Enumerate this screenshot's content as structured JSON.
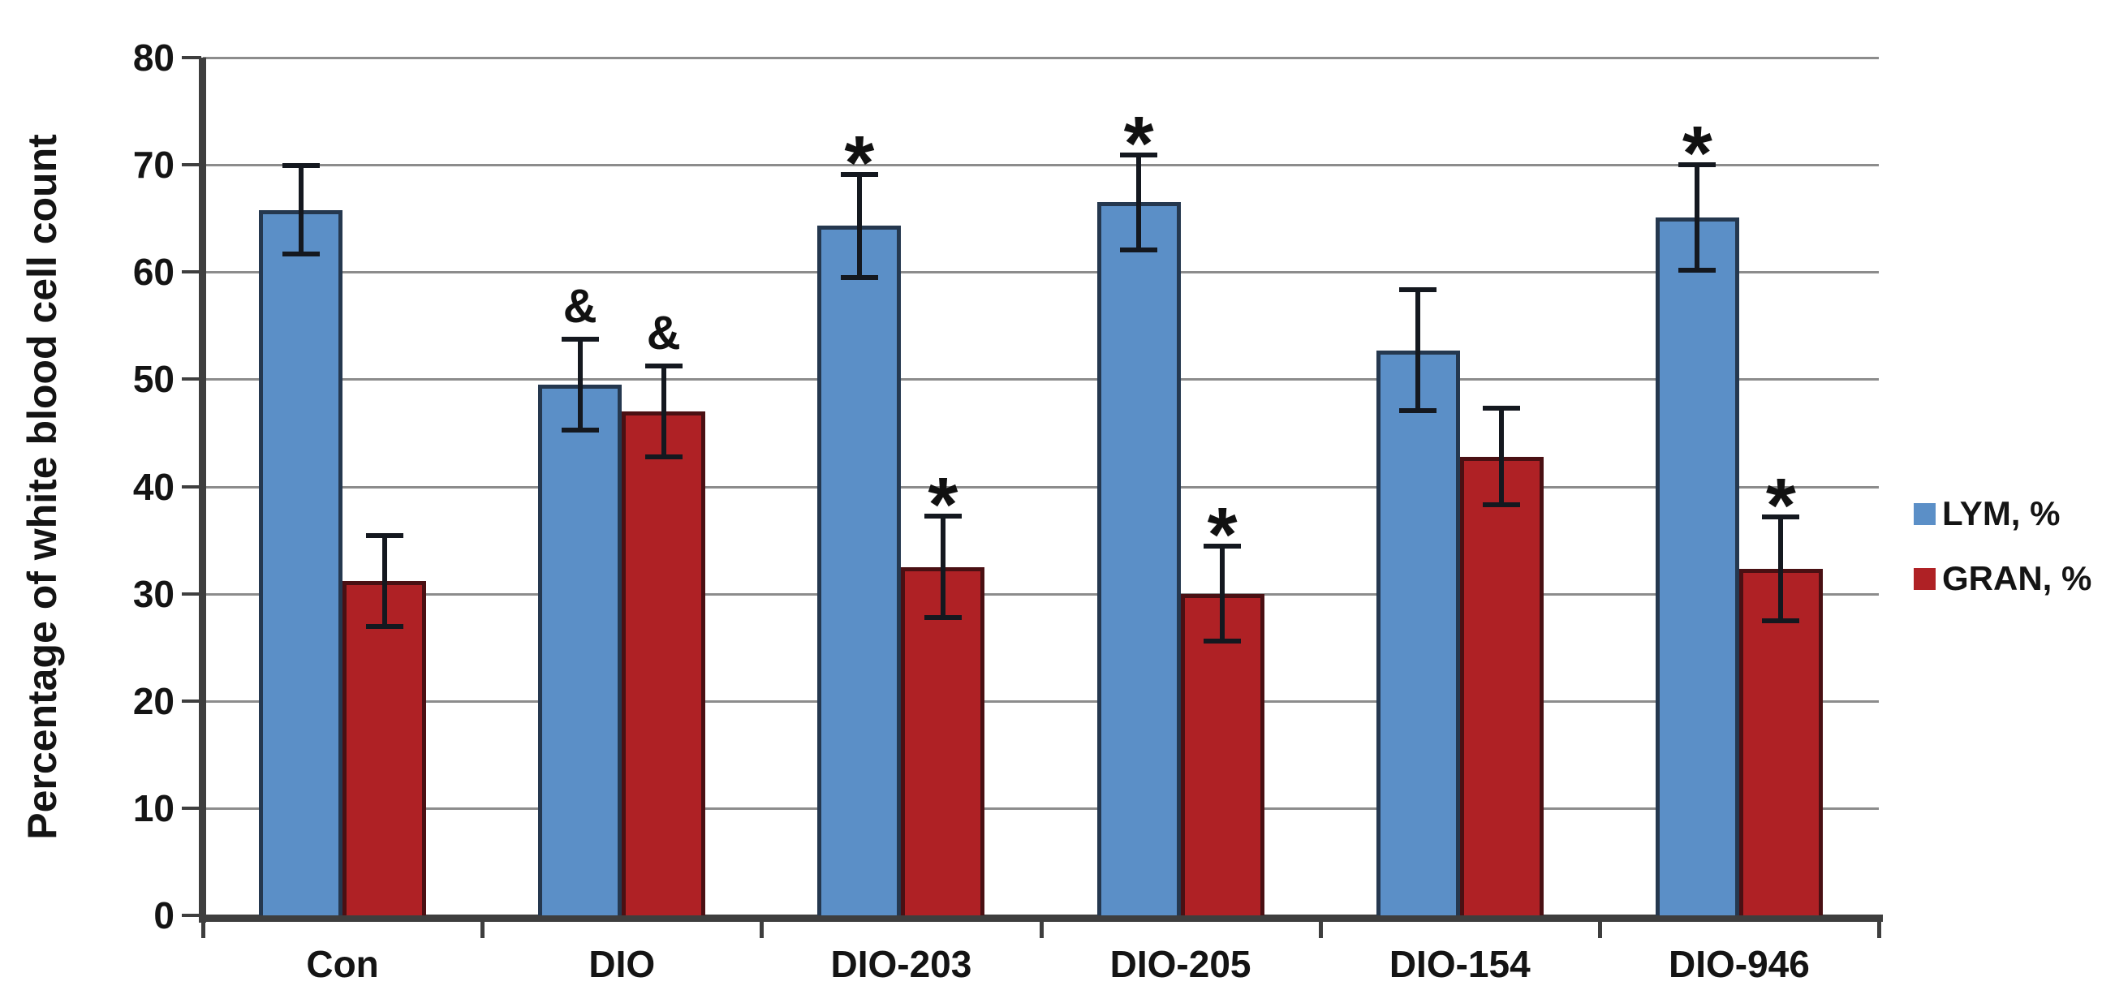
{
  "chart_data": {
    "type": "bar",
    "title": "",
    "xlabel": "",
    "ylabel": "Percentage of white blood cell count",
    "ylim": [
      0,
      80
    ],
    "yticks": [
      0,
      10,
      20,
      30,
      40,
      50,
      60,
      70,
      80
    ],
    "grid": true,
    "legend_position": "right",
    "categories": [
      "Con",
      "DIO",
      "DIO-203",
      "DIO-205",
      "DIO-154",
      "DIO-946"
    ],
    "series": [
      {
        "name": "LYM, %",
        "color": "#5B8FC7",
        "border_color": "#25384F",
        "values": [
          65.8,
          49.5,
          64.3,
          66.5,
          52.7,
          65.1
        ],
        "errors": [
          4.2,
          4.3,
          4.9,
          4.5,
          5.7,
          5.0
        ],
        "annotations": [
          "",
          "&",
          "*",
          "*",
          "",
          "*"
        ]
      },
      {
        "name": "GRAN, %",
        "color": "#AF2125",
        "border_color": "#4A1013",
        "values": [
          31.2,
          47.0,
          32.5,
          30.0,
          42.8,
          32.3
        ],
        "errors": [
          4.3,
          4.3,
          4.8,
          4.5,
          4.6,
          4.9
        ],
        "annotations": [
          "",
          "&",
          "*",
          "*",
          "",
          "*"
        ]
      }
    ],
    "error_bar_color": "#14181f",
    "gridline_color": "#8c8c8c",
    "axis_color": "#3e3e3e"
  }
}
